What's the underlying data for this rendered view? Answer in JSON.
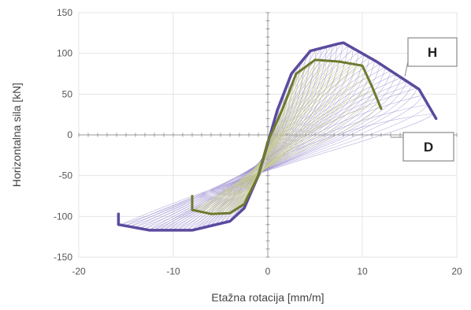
{
  "chart_data": {
    "type": "line",
    "title": "",
    "xlabel": "Etažna rotacija [mm/m]",
    "ylabel": "Horizontalna sila [kN]",
    "xlim": [
      -20,
      20
    ],
    "ylim": [
      -150,
      150
    ],
    "x_ticks": [
      -20,
      -10,
      0,
      10,
      20
    ],
    "y_ticks": [
      -150,
      -100,
      -50,
      0,
      50,
      100,
      150
    ],
    "grid": true,
    "series": [
      {
        "name": "H",
        "role": "envelope",
        "color": "#5b4a9e",
        "points": [
          [
            -15.8,
            -97
          ],
          [
            -15.8,
            -110
          ],
          [
            -12.5,
            -117
          ],
          [
            -8,
            -117
          ],
          [
            -4,
            -106
          ],
          [
            -2.5,
            -90
          ],
          [
            -1,
            -50
          ],
          [
            0,
            -10
          ],
          [
            1,
            30
          ],
          [
            2.5,
            75
          ],
          [
            4.5,
            103
          ],
          [
            7.5,
            112
          ],
          [
            8,
            113
          ],
          [
            11.5,
            90
          ],
          [
            16,
            56
          ],
          [
            17.8,
            20
          ]
        ]
      },
      {
        "name": "D",
        "role": "envelope",
        "color": "#6e7a2e",
        "points": [
          [
            -8,
            -75
          ],
          [
            -8,
            -92
          ],
          [
            -6,
            -97
          ],
          [
            -4,
            -96
          ],
          [
            -2.5,
            -85
          ],
          [
            -1,
            -50
          ],
          [
            0,
            -8
          ],
          [
            1.5,
            30
          ],
          [
            3,
            75
          ],
          [
            5,
            92
          ],
          [
            7.5,
            90
          ],
          [
            10,
            85
          ],
          [
            11,
            60
          ],
          [
            12,
            32
          ]
        ]
      }
    ],
    "annotations": [
      {
        "text": "H",
        "points_to": [
          14.5,
          72
        ]
      },
      {
        "text": "D",
        "points_to": [
          13,
          -3
        ]
      }
    ],
    "colors": {
      "H": "#5b4a9e",
      "D": "#6e7a2e",
      "hysteresis_purple": "#9b8fd0",
      "hysteresis_green": "#c9cf86"
    }
  }
}
